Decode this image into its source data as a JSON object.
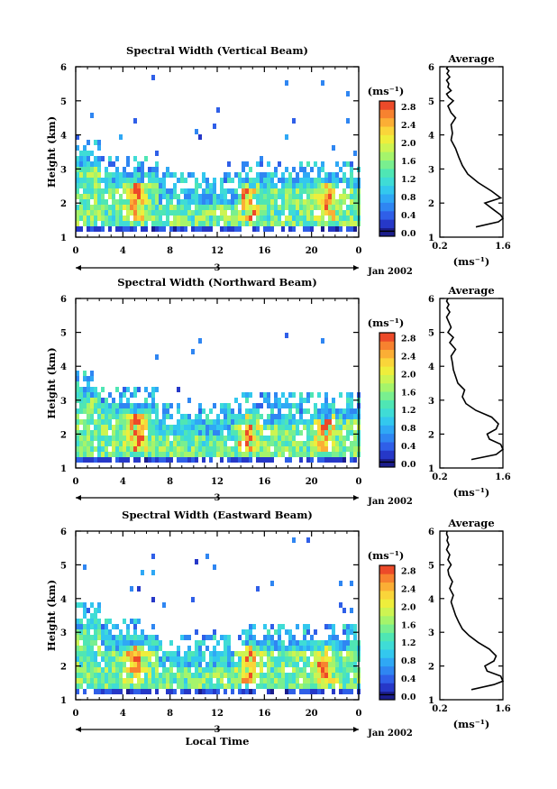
{
  "figure": {
    "xlabel": "Local Time",
    "date_label": "Jan 2002",
    "day_label": "3",
    "colorbar_unit": "(ms⁻¹)",
    "profile_title": "Average"
  },
  "chart_data": [
    {
      "type": "heatmap",
      "title": "Spectral Width (Vertical Beam)",
      "ylabel": "Height (km)",
      "x_ticks": [
        "0",
        "4",
        "8",
        "12",
        "16",
        "20",
        "0"
      ],
      "y_ticks": [
        "1",
        "2",
        "3",
        "4",
        "5",
        "6"
      ],
      "xlim": [
        0,
        24
      ],
      "ylim": [
        1,
        6
      ],
      "colorbar": {
        "ticks": [
          "0.0",
          "0.4",
          "0.8",
          "1.2",
          "1.6",
          "2.0",
          "2.4",
          "2.8"
        ],
        "range": [
          0,
          3.0
        ]
      },
      "profile": {
        "title": "Average",
        "xlabel": "(ms⁻¹)",
        "x_ticks": [
          "0.2",
          "1.6"
        ],
        "xlim": [
          0.2,
          1.6
        ],
        "y_ticks": [
          "1",
          "2",
          "3",
          "4",
          "5",
          "6"
        ],
        "ylim": [
          1,
          6
        ],
        "x": [
          1.0,
          1.5,
          1.6,
          1.55,
          1.4,
          1.2,
          1.55,
          1.35,
          1.05,
          0.82,
          0.7,
          0.62,
          0.55,
          0.45,
          0.48,
          0.45,
          0.55,
          0.45,
          0.38,
          0.5,
          0.4,
          0.35,
          0.45,
          0.38,
          0.4,
          0.35,
          0.42,
          0.36,
          0.4,
          0.35,
          0.38
        ],
        "y": [
          1.3,
          1.45,
          1.55,
          1.65,
          1.8,
          2.0,
          2.15,
          2.35,
          2.6,
          2.85,
          3.1,
          3.35,
          3.6,
          3.85,
          4.05,
          4.3,
          4.5,
          4.65,
          4.85,
          5.0,
          5.1,
          5.2,
          5.3,
          5.4,
          5.5,
          5.6,
          5.7,
          5.8,
          5.88,
          5.95,
          6.0
        ]
      }
    },
    {
      "type": "heatmap",
      "title": "Spectral Width (Northward Beam)",
      "ylabel": "Height (km)",
      "x_ticks": [
        "0",
        "4",
        "8",
        "12",
        "16",
        "20",
        "0"
      ],
      "y_ticks": [
        "1",
        "2",
        "3",
        "4",
        "5",
        "6"
      ],
      "xlim": [
        0,
        24
      ],
      "ylim": [
        1,
        6
      ],
      "colorbar": {
        "ticks": [
          "0.0",
          "0.4",
          "0.8",
          "1.2",
          "1.6",
          "2.0",
          "2.4",
          "2.8"
        ],
        "range": [
          0,
          3.0
        ]
      },
      "profile": {
        "title": "Average",
        "xlabel": "(ms⁻¹)",
        "x_ticks": [
          "0.2",
          "1.6"
        ],
        "xlim": [
          0.2,
          1.6
        ],
        "y_ticks": [
          "1",
          "2",
          "3",
          "4",
          "5",
          "6"
        ],
        "ylim": [
          1,
          6
        ],
        "x": [
          0.9,
          1.45,
          1.6,
          1.55,
          1.3,
          1.25,
          1.45,
          1.5,
          1.35,
          1.0,
          0.78,
          0.7,
          0.75,
          0.6,
          0.55,
          0.5,
          0.48,
          0.45,
          0.55,
          0.42,
          0.5,
          0.38,
          0.45,
          0.4,
          0.35,
          0.42,
          0.36,
          0.4,
          0.35,
          0.38
        ],
        "y": [
          1.25,
          1.4,
          1.55,
          1.7,
          1.85,
          2.0,
          2.15,
          2.3,
          2.5,
          2.7,
          2.9,
          3.1,
          3.3,
          3.5,
          3.7,
          3.9,
          4.1,
          4.3,
          4.5,
          4.7,
          4.85,
          5.0,
          5.15,
          5.3,
          5.45,
          5.6,
          5.72,
          5.82,
          5.92,
          6.0
        ]
      }
    },
    {
      "type": "heatmap",
      "title": "Spectral Width (Eastward Beam)",
      "ylabel": "Height (km)",
      "x_ticks": [
        "0",
        "4",
        "8",
        "12",
        "16",
        "20",
        "0"
      ],
      "y_ticks": [
        "1",
        "2",
        "3",
        "4",
        "5",
        "6"
      ],
      "xlim": [
        0,
        24
      ],
      "ylim": [
        1,
        6
      ],
      "colorbar": {
        "ticks": [
          "0.0",
          "0.4",
          "0.8",
          "1.2",
          "1.6",
          "2.0",
          "2.4",
          "2.8"
        ],
        "range": [
          0,
          3.0
        ]
      },
      "profile": {
        "title": "Average",
        "xlabel": "(ms⁻¹)",
        "x_ticks": [
          "0.2",
          "1.6"
        ],
        "xlim": [
          0.2,
          1.6
        ],
        "y_ticks": [
          "1",
          "2",
          "3",
          "4",
          "5",
          "6"
        ],
        "ylim": [
          1,
          6
        ],
        "x": [
          0.9,
          1.4,
          1.6,
          1.55,
          1.25,
          1.2,
          1.4,
          1.45,
          1.3,
          1.05,
          0.85,
          0.7,
          0.62,
          0.55,
          0.5,
          0.45,
          0.5,
          0.42,
          0.48,
          0.4,
          0.38,
          0.45,
          0.38,
          0.42,
          0.35,
          0.4,
          0.36,
          0.38,
          0.35,
          0.36
        ],
        "y": [
          1.3,
          1.45,
          1.55,
          1.7,
          1.85,
          2.0,
          2.15,
          2.3,
          2.5,
          2.7,
          2.9,
          3.1,
          3.3,
          3.5,
          3.7,
          3.9,
          4.1,
          4.3,
          4.5,
          4.7,
          4.85,
          5.0,
          5.15,
          5.3,
          5.45,
          5.6,
          5.72,
          5.82,
          5.92,
          6.0
        ]
      }
    }
  ]
}
